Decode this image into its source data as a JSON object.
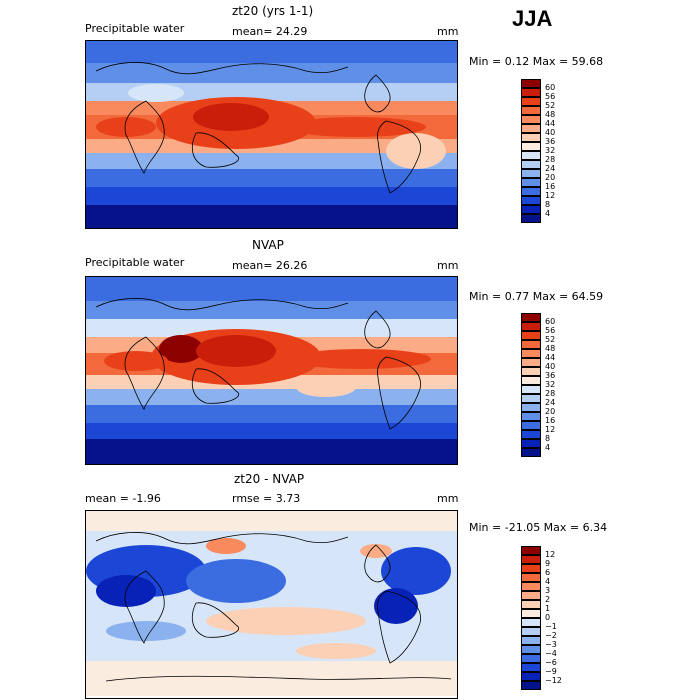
{
  "season": "JJA",
  "panels": [
    {
      "title": "zt20 (yrs 1-1)",
      "left_label": "Precipitable water",
      "mid_label": "mean=  24.29",
      "units": "mm",
      "minmax": "Min =    0.12 Max =  59.68",
      "colorbar": {
        "ticks": [
          "60",
          "56",
          "52",
          "48",
          "44",
          "40",
          "36",
          "32",
          "28",
          "24",
          "20",
          "16",
          "12",
          "8",
          "4"
        ],
        "colors": [
          "#8c0000",
          "#c81e0a",
          "#e8411a",
          "#f26a3c",
          "#f88a5e",
          "#fbab86",
          "#fcd0b4",
          "#fbece0",
          "#d6e6f8",
          "#b4cff3",
          "#8bb2ee",
          "#5f8fe6",
          "#3b6de0",
          "#1c46d6",
          "#0822b8",
          "#06128a"
        ]
      }
    },
    {
      "title": "NVAP",
      "left_label": "Precipitable water",
      "mid_label": "mean=  26.26",
      "units": "mm",
      "minmax": "Min =    0.77 Max =  64.59",
      "colorbar": {
        "ticks": [
          "60",
          "56",
          "52",
          "48",
          "44",
          "40",
          "36",
          "32",
          "28",
          "24",
          "20",
          "16",
          "12",
          "8",
          "4"
        ],
        "colors": [
          "#8c0000",
          "#c81e0a",
          "#e8411a",
          "#f26a3c",
          "#f88a5e",
          "#fbab86",
          "#fcd0b4",
          "#fbece0",
          "#d6e6f8",
          "#b4cff3",
          "#8bb2ee",
          "#5f8fe6",
          "#3b6de0",
          "#1c46d6",
          "#0822b8",
          "#06128a"
        ]
      }
    },
    {
      "title": "zt20 - NVAP",
      "left_label": "mean =   -1.96",
      "mid_label": "rmse =    3.73",
      "units": "mm",
      "minmax": "Min = -21.05 Max =    6.34",
      "colorbar": {
        "ticks": [
          "12",
          "9",
          "6",
          "4",
          "3",
          "2",
          "1",
          "0",
          "−1",
          "−2",
          "−3",
          "−4",
          "−6",
          "−9",
          "−12"
        ],
        "colors": [
          "#8c0000",
          "#c81e0a",
          "#e8411a",
          "#f26a3c",
          "#f88a5e",
          "#fbab86",
          "#fcd0b4",
          "#fbece0",
          "#d6e6f8",
          "#b4cff3",
          "#8bb2ee",
          "#5f8fe6",
          "#3b6de0",
          "#1c46d6",
          "#0822b8",
          "#06128a"
        ]
      }
    }
  ],
  "chart_data": [
    {
      "type": "heatmap",
      "title": "zt20 (yrs 1-1)",
      "subtitle": "Precipitable water",
      "mean": 24.29,
      "units": "mm",
      "min": 0.12,
      "max": 59.68,
      "levels": [
        4,
        8,
        12,
        16,
        20,
        24,
        28,
        32,
        36,
        40,
        44,
        48,
        52,
        56,
        60
      ]
    },
    {
      "type": "heatmap",
      "title": "NVAP",
      "subtitle": "Precipitable water",
      "mean": 26.26,
      "units": "mm",
      "min": 0.77,
      "max": 64.59,
      "levels": [
        4,
        8,
        12,
        16,
        20,
        24,
        28,
        32,
        36,
        40,
        44,
        48,
        52,
        56,
        60
      ]
    },
    {
      "type": "heatmap",
      "title": "zt20 - NVAP",
      "mean": -1.96,
      "rmse": 3.73,
      "units": "mm",
      "min": -21.05,
      "max": 6.34,
      "levels": [
        -12,
        -9,
        -6,
        -4,
        -3,
        -2,
        -1,
        0,
        1,
        2,
        3,
        4,
        6,
        9,
        12
      ]
    }
  ]
}
